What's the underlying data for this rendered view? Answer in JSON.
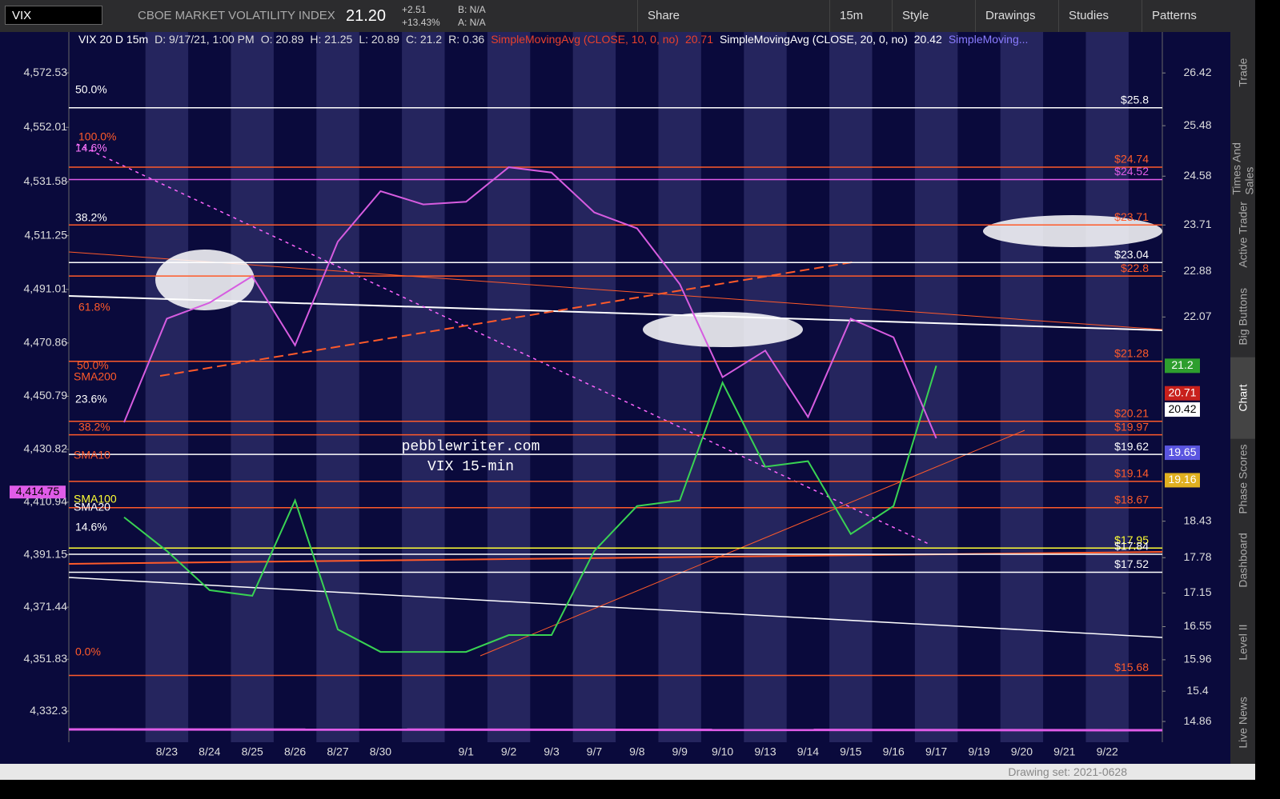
{
  "toolbar": {
    "symbol": "VIX",
    "description": "CBOE MARKET VOLATILITY INDEX",
    "last": "21.20",
    "change": "+2.51",
    "change_pct": "+13.43%",
    "bid": "B: N/A",
    "ask": "A: N/A",
    "buttons": [
      "Share",
      "15m",
      "Style",
      "Drawings",
      "Studies",
      "Patterns"
    ]
  },
  "info_bar": {
    "title": "VIX 20 D 15m",
    "items": [
      "D: 9/17/21, 1:00 PM",
      "O: 20.89",
      "H: 21.25",
      "L: 20.89",
      "C: 21.2",
      "R: 0.36"
    ],
    "studies": [
      {
        "label": "SimpleMovingAvg (CLOSE, 10, 0, no)",
        "value": "20.71",
        "color": "#e8412c"
      },
      {
        "label": "SimpleMovingAvg (CLOSE, 20, 0, no)",
        "value": "20.42",
        "color": "#ffffff"
      },
      {
        "label": "SimpleMoving...",
        "color": "#8a7cff"
      }
    ]
  },
  "chart_data": {
    "type": "line",
    "categories": [
      null,
      "8/23",
      "8/24",
      "8/25",
      "8/26",
      "8/27",
      "8/30",
      null,
      "9/1",
      "9/2",
      "9/3",
      "9/7",
      "9/8",
      "9/9",
      "9/10",
      "9/13",
      "9/14",
      "9/15",
      "9/16",
      "9/17",
      "9/19",
      "9/20",
      "9/21",
      "9/22"
    ],
    "series": [
      {
        "color": "#39d353",
        "values": [
          18.5,
          17.9,
          17.2,
          17.1,
          18.8,
          16.5,
          16.1,
          16.1,
          16.1,
          16.4,
          16.4,
          17.9,
          18.7,
          18.8,
          20.9,
          19.4,
          19.5,
          18.2,
          18.7,
          21.2,
          null,
          null,
          null,
          null
        ]
      },
      {
        "color": "#d65ce0",
        "axis": "y2",
        "values": [
          4441,
          4480,
          4486,
          4496,
          4470,
          4509,
          4528,
          4523,
          4524,
          4537,
          4535,
          4520,
          4514,
          4493,
          4458,
          4468,
          4443,
          4480,
          4473,
          4435,
          null,
          null,
          null,
          null
        ]
      }
    ],
    "ylim": [
      14.49,
      27.15
    ],
    "yticks": [
      26.42,
      25.48,
      24.58,
      23.71,
      22.88,
      22.07,
      18.43,
      17.78,
      17.15,
      16.55,
      15.96,
      15.4,
      14.86
    ],
    "y2lim": [
      4320.6,
      4587.9
    ],
    "y2ticks": [
      {
        "value": 4572.53,
        "label": "4,572.53"
      },
      {
        "value": 4552.01,
        "label": "4,552.01"
      },
      {
        "value": 4531.58,
        "label": "4,531.58"
      },
      {
        "value": 4511.25,
        "label": "4,511.25"
      },
      {
        "value": 4491.01,
        "label": "4,491.01"
      },
      {
        "value": 4470.86,
        "label": "4,470.86"
      },
      {
        "value": 4450.79,
        "label": "4,450.79"
      },
      {
        "value": 4430.82,
        "label": "4,430.82"
      },
      {
        "value": 4410.94,
        "label": "4,410.94"
      },
      {
        "value": 4391.15,
        "label": "4,391.15"
      },
      {
        "value": 4371.44,
        "label": "4,371.44"
      },
      {
        "value": 4351.83,
        "label": "4,351.83"
      },
      {
        "value": 4332.3,
        "label": "4,332.3"
      }
    ],
    "levels": [
      {
        "value": 25.8,
        "label": "$25.8",
        "color": "#ffffff"
      },
      {
        "value": 24.74,
        "label": "$24.74",
        "color": "#ff5a2a"
      },
      {
        "value": 24.52,
        "label": "$24.52",
        "color": "#e05ce8"
      },
      {
        "value": 23.71,
        "label": "$23.71",
        "color": "#ff5a2a"
      },
      {
        "value": 23.04,
        "label": "$23.04",
        "color": "#ffffff"
      },
      {
        "value": 22.8,
        "label": "$22.8",
        "color": "#ff5a2a"
      },
      {
        "value": 21.28,
        "label": "$21.28",
        "color": "#ff5a2a"
      },
      {
        "value": 20.21,
        "label": "$20.21",
        "color": "#ff5a2a"
      },
      {
        "value": 19.97,
        "label": "$19.97",
        "color": "#ff5a2a"
      },
      {
        "value": 19.62,
        "label": "$19.62",
        "color": "#ffffff"
      },
      {
        "value": 19.14,
        "label": "$19.14",
        "color": "#ff5a2a"
      },
      {
        "value": 18.67,
        "label": "$18.67",
        "color": "#ff5a2a"
      },
      {
        "value": 17.95,
        "label": "$17.95",
        "color": "#ffff33"
      },
      {
        "value": 17.84,
        "label": "$17.84",
        "color": "#ffffff"
      },
      {
        "value": 17.52,
        "label": "$17.52",
        "color": "#ffffff"
      },
      {
        "value": 15.68,
        "label": "$15.68",
        "color": "#ff5a2a"
      }
    ],
    "badges": [
      {
        "value": 21.2,
        "color": "#2e9e2e"
      },
      {
        "value": 20.71,
        "color": "#c8201c"
      },
      {
        "value": 20.42,
        "color": "#ffffff"
      },
      {
        "value": 19.65,
        "color": "#5a55e0"
      },
      {
        "value": 19.16,
        "color": "#e0b020"
      }
    ],
    "y2_badges": [
      {
        "value": 4414.75,
        "label": "4,414.75",
        "color": "#e05ce8"
      }
    ],
    "annotations": [
      "50.0%",
      "100.0%",
      "14.6%",
      "38.2%",
      "61.8%",
      "50.0%",
      "SMA200",
      "23.6%",
      "38.2%",
      "SMA10",
      "SMA100",
      "SMA20",
      "14.6%",
      "0.0%"
    ],
    "watermark": [
      "pebblewriter.com",
      "VIX 15-min"
    ]
  },
  "tabs": [
    "Trade",
    "Times And Sales",
    "Active Trader",
    "Big Buttons",
    "Chart",
    "Phase Scores",
    "Dashboard",
    "Level II",
    "Live News"
  ],
  "status": "Drawing set: 2021-0628"
}
